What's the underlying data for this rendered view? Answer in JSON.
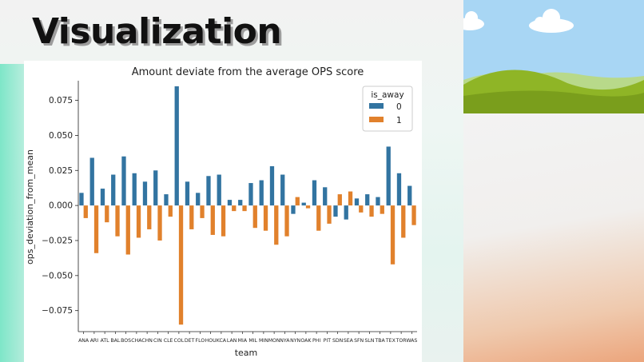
{
  "slide": {
    "title": "Visualization"
  },
  "colors": {
    "series_0": "#3274a1",
    "series_1": "#e1812c"
  },
  "chart_data": {
    "type": "bar",
    "title": "Amount deviate from the average OPS score",
    "xlabel": "team",
    "ylabel": "ops_deviation_from_mean",
    "ylim": [
      -0.09,
      0.089
    ],
    "yticks": [
      0.075,
      0.05,
      0.025,
      0.0,
      -0.025,
      -0.05,
      -0.075
    ],
    "ytick_labels": [
      "0.075",
      "0.050",
      "0.025",
      "0.000",
      "−0.025",
      "−0.050",
      "−0.075"
    ],
    "legend": {
      "title": "is_away",
      "placement": "top-right"
    },
    "categories": [
      "ANA",
      "ARI",
      "ATL",
      "BAL",
      "BOS",
      "CHA",
      "CHN",
      "CIN",
      "CLE",
      "COL",
      "DET",
      "FLO",
      "HOU",
      "KCA",
      "LAN",
      "MIA",
      "MIL",
      "MIN",
      "MON",
      "NYA",
      "NYN",
      "OAK",
      "PHI",
      "PIT",
      "SDN",
      "SEA",
      "SFN",
      "SLN",
      "TBA",
      "TEX",
      "TOR",
      "WAS"
    ],
    "series": [
      {
        "name": "0",
        "values": [
          0.009,
          0.034,
          0.012,
          0.022,
          0.035,
          0.023,
          0.017,
          0.025,
          0.008,
          0.085,
          0.017,
          0.009,
          0.021,
          0.022,
          0.004,
          0.004,
          0.016,
          0.018,
          0.028,
          0.022,
          -0.006,
          0.002,
          0.018,
          0.013,
          -0.008,
          -0.01,
          0.005,
          0.008,
          0.006,
          0.042,
          0.023,
          0.014
        ]
      },
      {
        "name": "1",
        "values": [
          -0.009,
          -0.034,
          -0.012,
          -0.022,
          -0.035,
          -0.023,
          -0.017,
          -0.025,
          -0.008,
          -0.085,
          -0.017,
          -0.009,
          -0.021,
          -0.022,
          -0.004,
          -0.004,
          -0.016,
          -0.018,
          -0.028,
          -0.022,
          0.006,
          -0.002,
          -0.018,
          -0.013,
          0.008,
          0.01,
          -0.005,
          -0.008,
          -0.006,
          -0.042,
          -0.023,
          -0.014
        ]
      }
    ]
  }
}
